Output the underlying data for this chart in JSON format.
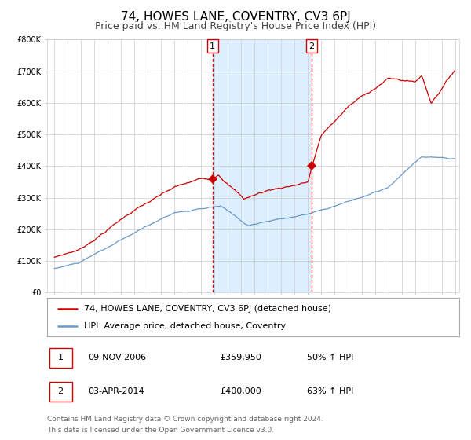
{
  "title": "74, HOWES LANE, COVENTRY, CV3 6PJ",
  "subtitle": "Price paid vs. HM Land Registry's House Price Index (HPI)",
  "red_line_label": "74, HOWES LANE, COVENTRY, CV3 6PJ (detached house)",
  "blue_line_label": "HPI: Average price, detached house, Coventry",
  "marker1_date_label": "1",
  "marker2_date_label": "2",
  "marker1_x": 2006.86,
  "marker1_y": 359950,
  "marker2_x": 2014.25,
  "marker2_y": 400000,
  "shade_x1": 2006.86,
  "shade_x2": 2014.25,
  "vline1_x": 2006.86,
  "vline2_x": 2014.25,
  "table_row1": [
    "1",
    "09-NOV-2006",
    "£359,950",
    "50% ↑ HPI"
  ],
  "table_row2": [
    "2",
    "03-APR-2014",
    "£400,000",
    "63% ↑ HPI"
  ],
  "footer_line1": "Contains HM Land Registry data © Crown copyright and database right 2024.",
  "footer_line2": "This data is licensed under the Open Government Licence v3.0.",
  "ylim": [
    0,
    800000
  ],
  "yticks": [
    0,
    100000,
    200000,
    300000,
    400000,
    500000,
    600000,
    700000,
    800000
  ],
  "ytick_labels": [
    "£0",
    "£100K",
    "£200K",
    "£300K",
    "£400K",
    "£500K",
    "£600K",
    "£700K",
    "£800K"
  ],
  "xlim_start": 1994.5,
  "xlim_end": 2025.3,
  "xticks": [
    1995,
    1996,
    1997,
    1998,
    1999,
    2000,
    2001,
    2002,
    2003,
    2004,
    2005,
    2006,
    2007,
    2008,
    2009,
    2010,
    2011,
    2012,
    2013,
    2014,
    2015,
    2016,
    2017,
    2018,
    2019,
    2020,
    2021,
    2022,
    2023,
    2024,
    2025
  ],
  "red_color": "#cc0000",
  "blue_color": "#6699cc",
  "shade_color": "#ddeeff",
  "vline_color": "#cc0000",
  "grid_color": "#cccccc",
  "background_color": "#ffffff",
  "title_fontsize": 11,
  "subtitle_fontsize": 9,
  "tick_fontsize": 7,
  "legend_fontsize": 8,
  "table_fontsize": 8,
  "footer_fontsize": 6.5
}
